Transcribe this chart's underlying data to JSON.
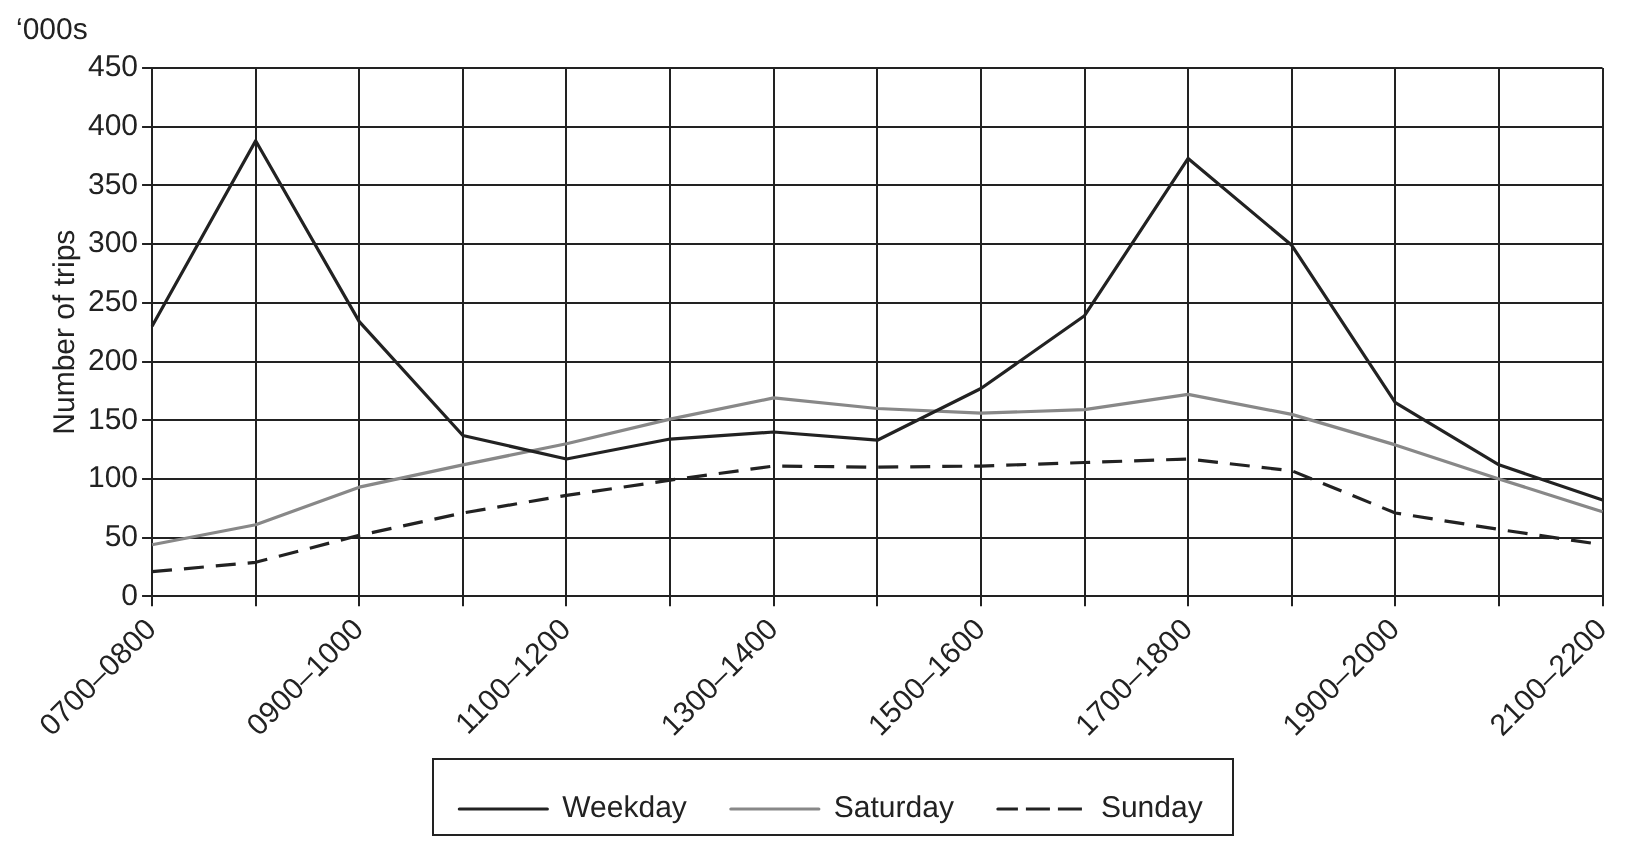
{
  "chart_data": {
    "type": "line",
    "ylabel": "Number of trips",
    "annotations": [
      "‘000s"
    ],
    "categories": [
      "0700–0800",
      null,
      "0900–1000",
      null,
      "1100–1200",
      null,
      "1300–1400",
      null,
      "1500–1600",
      null,
      "1700–1800",
      null,
      "1900–2000",
      null,
      "2100–2200"
    ],
    "series": [
      {
        "name": "Weekday",
        "color": "#222222",
        "line_style": "solid",
        "values": [
          230,
          388,
          234,
          137,
          117,
          134,
          140,
          133,
          177,
          239,
          373,
          299,
          165,
          112,
          82
        ]
      },
      {
        "name": "Saturday",
        "color": "#888888",
        "line_style": "solid",
        "values": [
          44,
          61,
          93,
          112,
          130,
          151,
          169,
          160,
          156,
          159,
          172,
          155,
          129,
          100,
          72
        ]
      },
      {
        "name": "Sunday",
        "color": "#222222",
        "line_style": "dashed",
        "values": [
          21,
          29,
          52,
          71,
          86,
          99,
          111,
          110,
          111,
          114,
          117,
          107,
          71,
          57,
          44
        ]
      }
    ],
    "ylim": [
      0,
      450
    ],
    "yticks": [
      0,
      50,
      100,
      150,
      200,
      250,
      300,
      350,
      400,
      450
    ],
    "grid": true,
    "legend": "bottom",
    "marker": "none"
  }
}
